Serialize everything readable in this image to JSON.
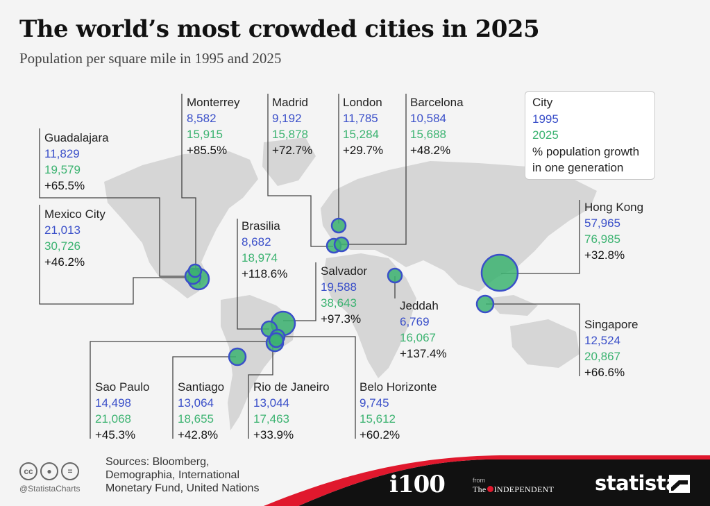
{
  "title": "The world’s most crowded cities in 2025",
  "subtitle": "Population per square mile in 1995 and 2025",
  "chart_data": {
    "type": "bubble-map",
    "title": "The world’s most crowded cities in 2025",
    "subtitle": "Population per square mile in 1995 and 2025",
    "series": [
      {
        "name": "1995",
        "color": "#3a4fc9"
      },
      {
        "name": "2025",
        "color": "#3cb371"
      }
    ],
    "cities": [
      {
        "name": "Monterrey",
        "v1995": "8,582",
        "v2025": "15,915",
        "growth": "+85.5%"
      },
      {
        "name": "Madrid",
        "v1995": "9,192",
        "v2025": "15,878",
        "growth": "+72.7%"
      },
      {
        "name": "London",
        "v1995": "11,785",
        "v2025": "15,284",
        "growth": "+29.7%"
      },
      {
        "name": "Barcelona",
        "v1995": "10,584",
        "v2025": "15,688",
        "growth": "+48.2%"
      },
      {
        "name": "Guadalajara",
        "v1995": "11,829",
        "v2025": "19,579",
        "growth": "+65.5%"
      },
      {
        "name": "Mexico City",
        "v1995": "21,013",
        "v2025": "30,726",
        "growth": "+46.2%"
      },
      {
        "name": "Brasilia",
        "v1995": "8,682",
        "v2025": "18,974",
        "growth": "+118.6%"
      },
      {
        "name": "Salvador",
        "v1995": "19,588",
        "v2025": "38,643",
        "growth": "+97.3%"
      },
      {
        "name": "Jeddah",
        "v1995": "6,769",
        "v2025": "16,067",
        "growth": "+137.4%"
      },
      {
        "name": "Hong Kong",
        "v1995": "57,965",
        "v2025": "76,985",
        "growth": "+32.8%"
      },
      {
        "name": "Singapore",
        "v1995": "12,524",
        "v2025": "20,867",
        "growth": "+66.6%"
      },
      {
        "name": "Sao Paulo",
        "v1995": "14,498",
        "v2025": "21,068",
        "growth": "+45.3%"
      },
      {
        "name": "Santiago",
        "v1995": "13,064",
        "v2025": "18,655",
        "growth": "+42.8%"
      },
      {
        "name": "Rio de Janeiro",
        "v1995": "13,044",
        "v2025": "17,463",
        "growth": "+33.9%"
      },
      {
        "name": "Belo Horizonte",
        "v1995": "9,745",
        "v2025": "15,612",
        "growth": "+60.2%"
      }
    ]
  },
  "legend": {
    "city": "City",
    "y1995": "1995",
    "y2025": "2025",
    "growth_line1": "% population growth",
    "growth_line2": "in one generation"
  },
  "footer": {
    "handle": "@StatistaCharts",
    "sources_line1": "Sources: Bloomberg,",
    "sources_line2": "Demographia, International",
    "sources_line3": "Monetary Fund, United Nations",
    "i100": "i100",
    "from": "from",
    "independent_pre": "The",
    "independent_post": "INDEPENDENT",
    "statista": "statista"
  },
  "colors": {
    "blue": "#3a4fc9",
    "green": "#3cb371",
    "footer": "#111111",
    "accent": "#e0182d"
  }
}
